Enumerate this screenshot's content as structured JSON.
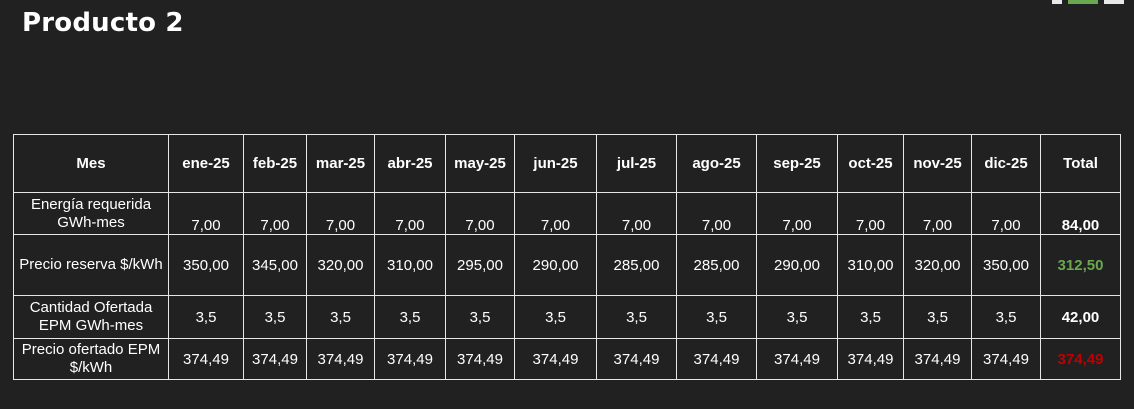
{
  "title": "Producto 2",
  "colors": {
    "background": "#212121",
    "green_total": "#6aa84f",
    "red_total": "#c00000"
  },
  "table": {
    "headers": [
      "Mes",
      "ene-25",
      "feb-25",
      "mar-25",
      "abr-25",
      "may-25",
      "jun-25",
      "jul-25",
      "ago-25",
      "sep-25",
      "oct-25",
      "nov-25",
      "dic-25",
      "Total"
    ],
    "rows": [
      {
        "label": "Energía requerida GWh-mes",
        "values": [
          "7,00",
          "7,00",
          "7,00",
          "7,00",
          "7,00",
          "7,00",
          "7,00",
          "7,00",
          "7,00",
          "7,00",
          "7,00",
          "7,00"
        ],
        "total": "84,00"
      },
      {
        "label": "Precio reserva $/kWh",
        "values": [
          "350,00",
          "345,00",
          "320,00",
          "310,00",
          "295,00",
          "290,00",
          "285,00",
          "285,00",
          "290,00",
          "310,00",
          "320,00",
          "350,00"
        ],
        "total": "312,50"
      },
      {
        "label": "Cantidad Ofertada EPM GWh-mes",
        "values": [
          "3,5",
          "3,5",
          "3,5",
          "3,5",
          "3,5",
          "3,5",
          "3,5",
          "3,5",
          "3,5",
          "3,5",
          "3,5",
          "3,5"
        ],
        "total": "42,00"
      },
      {
        "label": "Precio ofertado EPM $/kWh",
        "values": [
          "374,49",
          "374,49",
          "374,49",
          "374,49",
          "374,49",
          "374,49",
          "374,49",
          "374,49",
          "374,49",
          "374,49",
          "374,49",
          "374,49"
        ],
        "total": "374,49"
      }
    ]
  }
}
